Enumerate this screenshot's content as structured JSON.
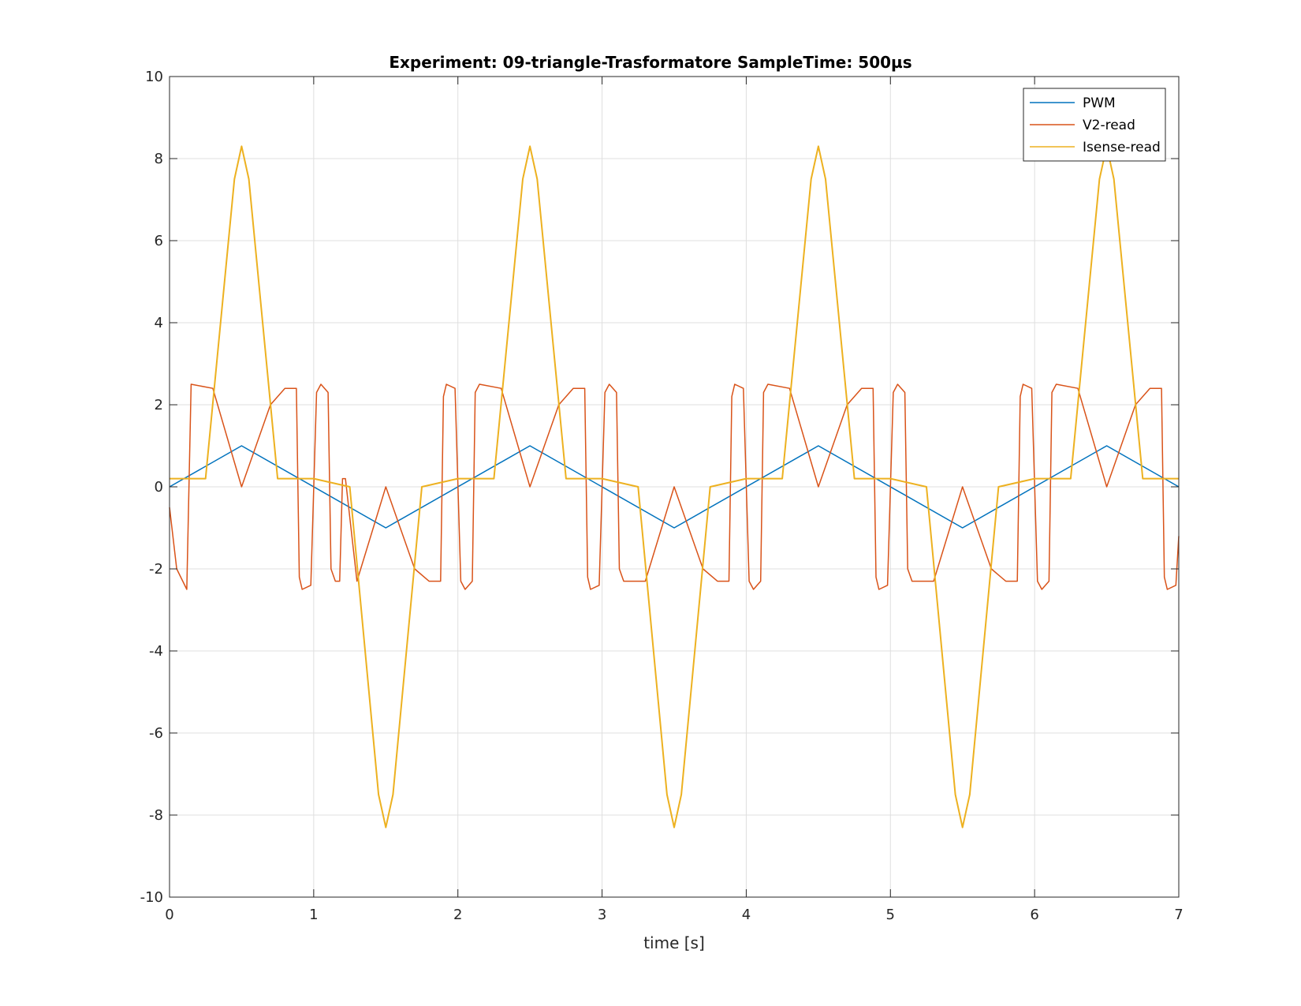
{
  "chart_data": {
    "type": "line",
    "title": "Experiment: 09-triangle-Trasformatore   SampleTime: 500µs",
    "xlabel": "time [s]",
    "ylabel": "",
    "xlim": [
      0,
      7
    ],
    "ylim": [
      -10,
      10
    ],
    "xticks": [
      0,
      1,
      2,
      3,
      4,
      5,
      6,
      7
    ],
    "yticks": [
      -10,
      -8,
      -6,
      -4,
      -2,
      0,
      2,
      4,
      6,
      8,
      10
    ],
    "grid": true,
    "legend_position": "top-right",
    "series": [
      {
        "name": "PWM",
        "color": "#0072BD",
        "x": [
          0,
          0.5,
          1.5,
          2.5,
          3.5,
          4.5,
          5.5,
          6.5,
          7.0
        ],
        "y": [
          0,
          1,
          -1,
          1,
          -1,
          1,
          -1,
          1,
          0
        ]
      },
      {
        "name": "V2-read",
        "color": "#D95319",
        "x": [
          0,
          0.05,
          0.12,
          0.15,
          0.3,
          0.5,
          0.7,
          0.8,
          0.88,
          0.9,
          0.92,
          0.98,
          1.02,
          1.05,
          1.1,
          1.12,
          1.15,
          1.18,
          1.2,
          1.22,
          1.3,
          1.5,
          1.7,
          1.8,
          1.88,
          1.9,
          1.92,
          1.98,
          2.02,
          2.05,
          2.1,
          2.12,
          2.15,
          2.3,
          2.5,
          2.7,
          2.8,
          2.88,
          2.9,
          2.92,
          2.98,
          3.02,
          3.05,
          3.1,
          3.12,
          3.15,
          3.3,
          3.5,
          3.7,
          3.8,
          3.88,
          3.9,
          3.92,
          3.98,
          4.02,
          4.05,
          4.1,
          4.12,
          4.15,
          4.3,
          4.5,
          4.7,
          4.8,
          4.88,
          4.9,
          4.92,
          4.98,
          5.02,
          5.05,
          5.1,
          5.12,
          5.15,
          5.3,
          5.5,
          5.7,
          5.8,
          5.88,
          5.9,
          5.92,
          5.98,
          6.02,
          6.05,
          6.1,
          6.12,
          6.15,
          6.3,
          6.5,
          6.7,
          6.8,
          6.88,
          6.9,
          6.92,
          6.98,
          7.0
        ],
        "y": [
          -0.5,
          -2.0,
          -2.5,
          2.5,
          2.4,
          0.0,
          2.0,
          2.4,
          2.4,
          -2.2,
          -2.5,
          -2.4,
          2.3,
          2.5,
          2.3,
          -2.0,
          -2.3,
          -2.3,
          0.2,
          0.2,
          -2.3,
          0.0,
          -2.0,
          -2.3,
          -2.3,
          2.2,
          2.5,
          2.4,
          -2.3,
          -2.5,
          -2.3,
          2.3,
          2.5,
          2.4,
          0.0,
          2.0,
          2.4,
          2.4,
          -2.2,
          -2.5,
          -2.4,
          2.3,
          2.5,
          2.3,
          -2.0,
          -2.3,
          -2.3,
          0.0,
          -2.0,
          -2.3,
          -2.3,
          2.2,
          2.5,
          2.4,
          -2.3,
          -2.5,
          -2.3,
          2.3,
          2.5,
          2.4,
          0.0,
          2.0,
          2.4,
          2.4,
          -2.2,
          -2.5,
          -2.4,
          2.3,
          2.5,
          2.3,
          -2.0,
          -2.3,
          -2.3,
          0.0,
          -2.0,
          -2.3,
          -2.3,
          2.2,
          2.5,
          2.4,
          -2.3,
          -2.5,
          -2.3,
          2.3,
          2.5,
          2.4,
          0.0,
          2.0,
          2.4,
          2.4,
          -2.2,
          -2.5,
          -2.4,
          -1.2
        ]
      },
      {
        "name": "Isense-read",
        "color": "#EDB120",
        "x": [
          0,
          0.25,
          0.45,
          0.5,
          0.55,
          0.75,
          1.0,
          1.25,
          1.45,
          1.5,
          1.55,
          1.75,
          2.0,
          2.25,
          2.45,
          2.5,
          2.55,
          2.75,
          3.0,
          3.25,
          3.45,
          3.5,
          3.55,
          3.75,
          4.0,
          4.25,
          4.45,
          4.5,
          4.55,
          4.75,
          5.0,
          5.25,
          5.45,
          5.5,
          5.55,
          5.75,
          6.0,
          6.25,
          6.45,
          6.5,
          6.55,
          6.75,
          7.0
        ],
        "y": [
          0.2,
          0.2,
          7.5,
          8.3,
          7.5,
          0.2,
          0.2,
          0.0,
          -7.5,
          -8.3,
          -7.5,
          0.0,
          0.2,
          0.2,
          7.5,
          8.3,
          7.5,
          0.2,
          0.2,
          0.0,
          -7.5,
          -8.3,
          -7.5,
          0.0,
          0.2,
          0.2,
          7.5,
          8.3,
          7.5,
          0.2,
          0.2,
          0.0,
          -7.5,
          -8.3,
          -7.5,
          0.0,
          0.2,
          0.2,
          7.5,
          8.3,
          7.5,
          0.2,
          0.2
        ]
      }
    ]
  }
}
